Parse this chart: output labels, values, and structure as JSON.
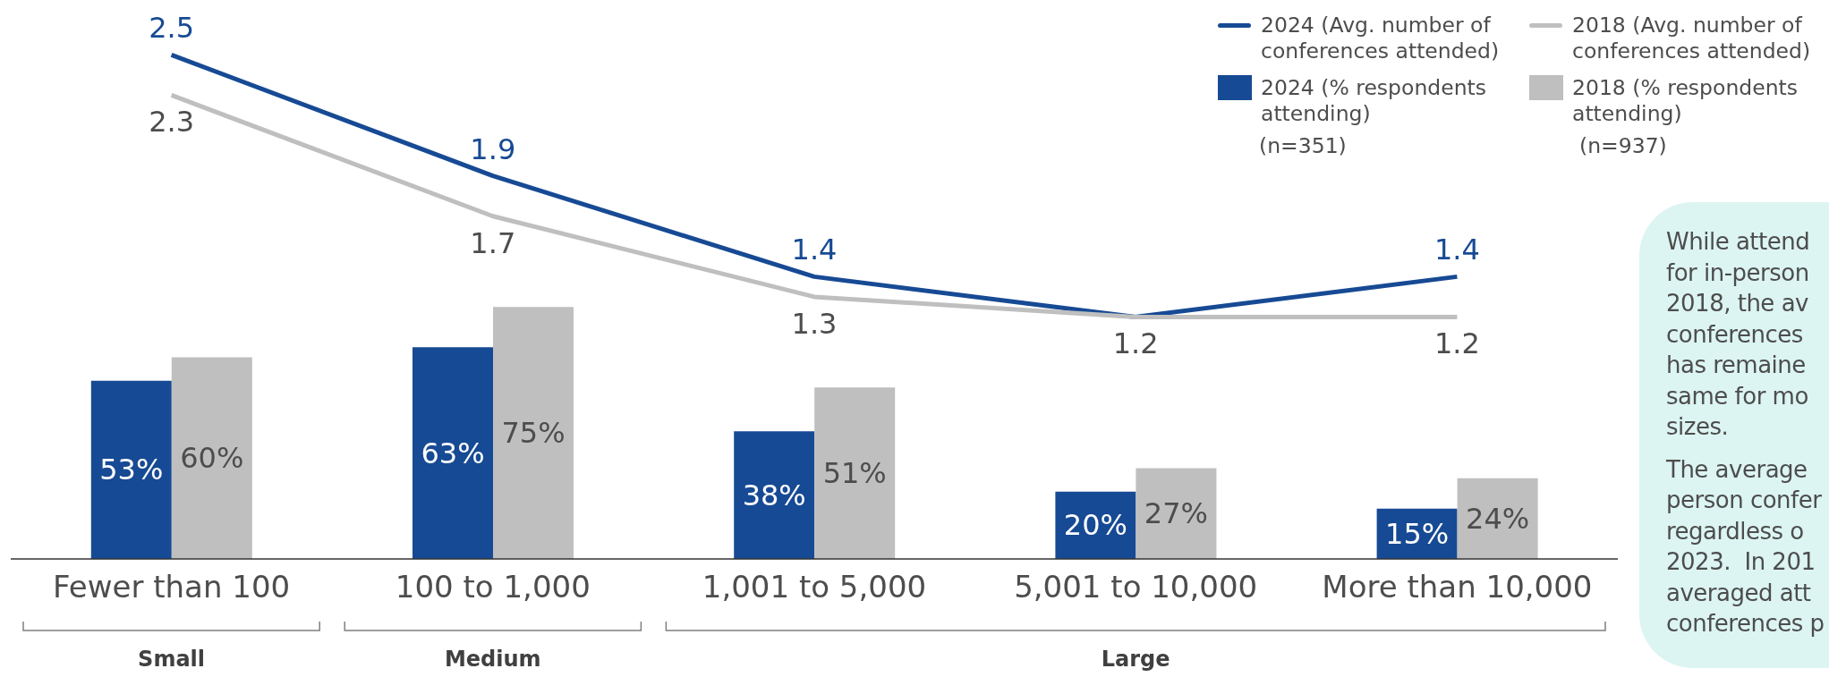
{
  "chart_data": {
    "type": "bar",
    "categories": [
      "Fewer than 100",
      "100 to 1,000",
      "1,001 to 5,000",
      "5,001 to 10,000",
      "More than 10,000"
    ],
    "series": [
      {
        "name": "2024 (Avg. number of conferences attended)",
        "type": "line",
        "axis": "y2",
        "color": "#174a94",
        "values": [
          2.5,
          1.9,
          1.4,
          1.2,
          1.4
        ],
        "value_labels": [
          "2.5",
          "1.9",
          "1.4",
          null,
          "1.4"
        ]
      },
      {
        "name": "2018 (Avg. number of conferences attended)",
        "type": "line",
        "axis": "y2",
        "color": "#bfbfbf",
        "values": [
          2.3,
          1.7,
          1.3,
          1.2,
          1.2
        ],
        "value_labels": [
          "2.3",
          "1.7",
          "1.3",
          "1.2",
          "1.2"
        ]
      },
      {
        "name": "2024 (% respondents attending)",
        "color": "#174a94",
        "values": [
          53,
          63,
          38,
          20,
          15
        ],
        "value_labels": [
          "53%",
          "63%",
          "38%",
          "20%",
          "15%"
        ]
      },
      {
        "name": "2018 (% respondents attending)",
        "color": "#bfbfbf",
        "values": [
          60,
          75,
          51,
          27,
          24
        ],
        "value_labels": [
          "60%",
          "75%",
          "51%",
          "27%",
          "24%"
        ]
      }
    ],
    "tick_labels": "x",
    "legend": "top right",
    "marker": "none",
    "line_style": "solid",
    "annotations": [
      "(n=351)",
      "(n=937)",
      "While attend\nfor in-person\n2018, the av\nconferences\nhas remaine\nsame for mo\nsizes.",
      "The average\nperson confer\nregardless o\n2023.  In 201\naveraged att\nconferences p",
      "Small",
      "Medium",
      "Large"
    ]
  }
}
